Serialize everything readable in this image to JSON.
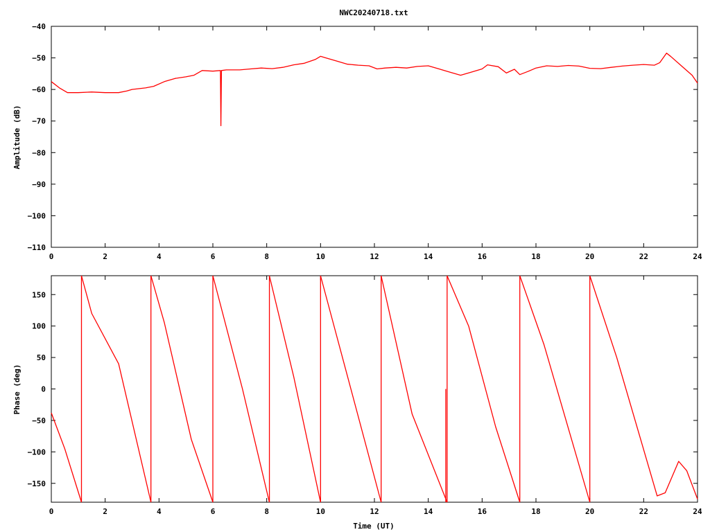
{
  "chart_data": [
    {
      "type": "line",
      "title": "NWC20240718.txt",
      "xlabel": "",
      "ylabel": "Amplitude (dB)",
      "xlim": [
        0,
        24
      ],
      "ylim": [
        -110,
        -40
      ],
      "xticks": [
        0,
        2,
        4,
        6,
        8,
        10,
        12,
        14,
        16,
        18,
        20,
        22,
        24
      ],
      "yticks": [
        -110,
        -100,
        -90,
        -80,
        -70,
        -60,
        -50,
        -40
      ],
      "ytick_labels": [
        "−110",
        "−100",
        "−90",
        "−80",
        "−70",
        "−60",
        "−50",
        "−40"
      ],
      "grid": false,
      "color": "#ff0000",
      "series": [
        {
          "x": [
            0,
            0.3,
            0.6,
            1.0,
            1.5,
            2.0,
            2.5,
            2.8,
            3.0,
            3.5,
            3.8,
            4.2,
            4.6,
            5.0,
            5.3,
            5.6,
            6.0,
            6.28,
            6.3,
            6.32,
            6.5,
            7.0,
            7.4,
            7.8,
            8.2,
            8.6,
            9.0,
            9.4,
            9.8,
            10.0,
            10.2,
            10.6,
            11.0,
            11.4,
            11.8,
            12.1,
            12.4,
            12.8,
            13.2,
            13.6,
            14.0,
            14.4,
            14.8,
            15.2,
            15.6,
            16.0,
            16.2,
            16.6,
            16.9,
            17.2,
            17.4,
            17.7,
            18.0,
            18.4,
            18.8,
            19.2,
            19.6,
            20.0,
            20.4,
            20.8,
            21.2,
            21.6,
            22.0,
            22.4,
            22.6,
            22.85,
            23.0,
            23.4,
            23.8,
            24.0
          ],
          "y": [
            -57.5,
            -59.5,
            -61,
            -61,
            -60.8,
            -61,
            -61,
            -60.5,
            -60,
            -59.5,
            -59,
            -57.5,
            -56.5,
            -56,
            -55.5,
            -54,
            -54.2,
            -54,
            -71.5,
            -54,
            -53.8,
            -53.8,
            -53.5,
            -53.2,
            -53.4,
            -53,
            -52.2,
            -51.7,
            -50.5,
            -49.5,
            -50,
            -51,
            -52,
            -52.3,
            -52.5,
            -53.5,
            -53.2,
            -53,
            -53.2,
            -52.7,
            -52.5,
            -53.5,
            -54.5,
            -55.5,
            -54.5,
            -53.5,
            -52.2,
            -52.8,
            -54.8,
            -53.6,
            -55.3,
            -54.3,
            -53.2,
            -52.5,
            -52.7,
            -52.4,
            -52.6,
            -53.3,
            -53.4,
            -53,
            -52.6,
            -52.3,
            -52.1,
            -52.3,
            -51.5,
            -48.5,
            -49.5,
            -52.5,
            -55.5,
            -58
          ]
        }
      ]
    },
    {
      "type": "line",
      "title": "",
      "xlabel": "Time (UT)",
      "ylabel": "Phase (deg)",
      "xlim": [
        0,
        24
      ],
      "ylim": [
        -180,
        180
      ],
      "xticks": [
        0,
        2,
        4,
        6,
        8,
        10,
        12,
        14,
        16,
        18,
        20,
        22,
        24
      ],
      "yticks": [
        -150,
        -100,
        -50,
        0,
        50,
        100,
        150
      ],
      "ytick_labels": [
        "−150",
        "−100",
        "−50",
        "0",
        "50",
        "100",
        "150"
      ],
      "grid": false,
      "color": "#ff0000",
      "series": [
        {
          "segments": [
            {
              "x": [
                0,
                0.5,
                1.12
              ],
              "y": [
                -38,
                -95,
                -180
              ]
            },
            {
              "x": [
                1.12,
                1.5,
                2.5,
                3.7
              ],
              "y": [
                180,
                120,
                40,
                -180
              ]
            },
            {
              "x": [
                3.7,
                4.2,
                5.2,
                6.0
              ],
              "y": [
                180,
                105,
                -80,
                -180
              ]
            },
            {
              "x": [
                6.0,
                7.1,
                8.1
              ],
              "y": [
                180,
                0,
                -180
              ]
            },
            {
              "x": [
                8.1,
                9.0,
                10.0
              ],
              "y": [
                180,
                20,
                -180
              ]
            },
            {
              "x": [
                10.0,
                11.0,
                12.25
              ],
              "y": [
                180,
                20,
                -180
              ]
            },
            {
              "x": [
                12.25,
                13.4,
                14.7
              ],
              "y": [
                180,
                -40,
                -180
              ]
            },
            {
              "x": [
                14.7,
                15.5,
                16.5,
                17.4
              ],
              "y": [
                180,
                100,
                -60,
                -180
              ]
            },
            {
              "x": [
                17.4,
                18.3,
                20.0
              ],
              "y": [
                180,
                70,
                -180
              ]
            },
            {
              "x": [
                20.0,
                21.0,
                22.5,
                22.8,
                23.3,
                23.6,
                24.0
              ],
              "y": [
                180,
                50,
                -170,
                -165,
                -115,
                -130,
                -175
              ]
            }
          ],
          "spikes": [
            {
              "x": 6.3,
              "y1": -180,
              "y2": 180,
              "panel": "none"
            },
            {
              "x": 14.65,
              "y1": 0,
              "y2": -180
            }
          ]
        }
      ]
    }
  ]
}
